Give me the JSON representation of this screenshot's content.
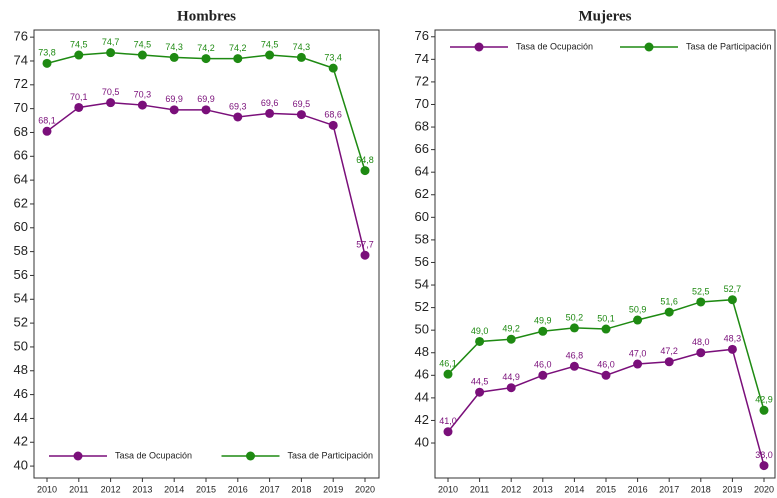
{
  "chart_data": [
    {
      "type": "line",
      "title": "Hombres",
      "categories": [
        "2010",
        "2011",
        "2012",
        "2013",
        "2014",
        "2015",
        "2016",
        "2017",
        "2018",
        "2019",
        "2020"
      ],
      "series": [
        {
          "name": "Tasa de Ocupación",
          "color": "#7a0f7a",
          "values": [
            68.1,
            70.1,
            70.5,
            70.3,
            69.9,
            69.9,
            69.3,
            69.6,
            69.5,
            68.6,
            57.7
          ],
          "value_labels": [
            "68,1",
            "70,1",
            "70,5",
            "70,3",
            "69,9",
            "69,9",
            "69,3",
            "69,6",
            "69,5",
            "68,6",
            "57,7"
          ]
        },
        {
          "name": "Tasa de Participación",
          "color": "#1e8a12",
          "values": [
            73.8,
            74.5,
            74.7,
            74.5,
            74.3,
            74.2,
            74.2,
            74.5,
            74.3,
            73.4,
            64.8
          ],
          "value_labels": [
            "73,8",
            "74,5",
            "74,7",
            "74,5",
            "74,3",
            "74,2",
            "74,2",
            "74,5",
            "74,3",
            "73,4",
            "64,8"
          ]
        }
      ],
      "ylim": [
        39,
        76.6
      ],
      "yticks": [
        40,
        42,
        44,
        46,
        48,
        50,
        52,
        54,
        56,
        58,
        60,
        62,
        64,
        66,
        68,
        70,
        72,
        74,
        76
      ],
      "legend": "bottom"
    },
    {
      "type": "line",
      "title": "Mujeres",
      "categories": [
        "2010",
        "2011",
        "2012",
        "2013",
        "2014",
        "2015",
        "2016",
        "2017",
        "2018",
        "2019",
        "2020"
      ],
      "series": [
        {
          "name": "Tasa de Ocupación",
          "color": "#7a0f7a",
          "values": [
            41.0,
            44.5,
            44.9,
            46.0,
            46.8,
            46.0,
            47.0,
            47.2,
            48.0,
            48.3,
            38.0
          ],
          "value_labels": [
            "41,0",
            "44,5",
            "44,9",
            "46,0",
            "46,8",
            "46,0",
            "47,0",
            "47,2",
            "48,0",
            "48,3",
            "38,0"
          ]
        },
        {
          "name": "Tasa de Participación",
          "color": "#1e8a12",
          "values": [
            46.1,
            49.0,
            49.2,
            49.9,
            50.2,
            50.1,
            50.9,
            51.6,
            52.5,
            52.7,
            42.9
          ],
          "value_labels": [
            "46,1",
            "49,0",
            "49,2",
            "49,9",
            "50,2",
            "50,1",
            "50,9",
            "51,6",
            "52,5",
            "52,7",
            "42,9"
          ]
        }
      ],
      "ylim": [
        36.9,
        76.6
      ],
      "yticks": [
        40,
        42,
        44,
        46,
        48,
        50,
        52,
        54,
        56,
        58,
        60,
        62,
        64,
        66,
        68,
        70,
        72,
        74,
        76
      ],
      "legend": "top"
    }
  ]
}
